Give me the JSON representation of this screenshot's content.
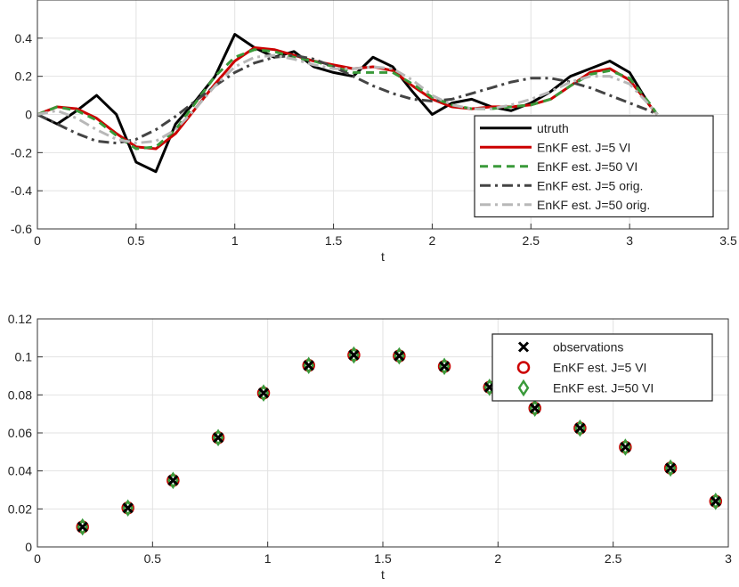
{
  "chart_data": [
    {
      "type": "line",
      "xlabel": "t",
      "x": [
        0,
        0.1,
        0.2,
        0.3,
        0.4,
        0.5,
        0.6,
        0.7,
        0.8,
        0.9,
        1.0,
        1.1,
        1.2,
        1.3,
        1.4,
        1.5,
        1.6,
        1.7,
        1.8,
        1.9,
        2.0,
        2.1,
        2.2,
        2.3,
        2.4,
        2.5,
        2.6,
        2.7,
        2.8,
        2.9,
        3.0,
        3.1,
        3.14
      ],
      "series": [
        {
          "name": "utruth",
          "color": "#000000",
          "style": "solid",
          "values": [
            0,
            -0.05,
            0.02,
            0.1,
            0.0,
            -0.25,
            -0.3,
            -0.05,
            0.07,
            0.2,
            0.42,
            0.35,
            0.3,
            0.33,
            0.25,
            0.22,
            0.2,
            0.3,
            0.25,
            0.12,
            0.0,
            0.06,
            0.08,
            0.04,
            0.02,
            0.06,
            0.12,
            0.2,
            0.24,
            0.28,
            0.22,
            0.05,
            0
          ]
        },
        {
          "name": "EnKF est. J=5 VI",
          "color": "#cc0000",
          "style": "solid",
          "values": [
            0,
            0.04,
            0.03,
            -0.02,
            -0.1,
            -0.17,
            -0.18,
            -0.1,
            0.03,
            0.16,
            0.28,
            0.35,
            0.34,
            0.31,
            0.28,
            0.26,
            0.24,
            0.25,
            0.23,
            0.15,
            0.08,
            0.04,
            0.03,
            0.04,
            0.04,
            0.05,
            0.08,
            0.15,
            0.22,
            0.24,
            0.18,
            0.05,
            0
          ]
        },
        {
          "name": "EnKF est. J=50 VI",
          "color": "#3a9a3a",
          "style": "dashed",
          "values": [
            0,
            0.04,
            0.02,
            -0.03,
            -0.11,
            -0.18,
            -0.17,
            -0.08,
            0.06,
            0.2,
            0.3,
            0.34,
            0.33,
            0.3,
            0.28,
            0.25,
            0.22,
            0.22,
            0.22,
            0.16,
            0.09,
            0.05,
            0.03,
            0.03,
            0.04,
            0.05,
            0.08,
            0.15,
            0.21,
            0.23,
            0.19,
            0.06,
            0
          ]
        },
        {
          "name": "EnKF est. J=5 orig.",
          "color": "#444444",
          "style": "dashdot",
          "values": [
            0,
            -0.05,
            -0.1,
            -0.14,
            -0.15,
            -0.13,
            -0.08,
            -0.01,
            0.07,
            0.15,
            0.22,
            0.27,
            0.3,
            0.31,
            0.29,
            0.25,
            0.2,
            0.15,
            0.11,
            0.08,
            0.07,
            0.08,
            0.11,
            0.14,
            0.17,
            0.19,
            0.19,
            0.17,
            0.14,
            0.1,
            0.06,
            0.02,
            0
          ]
        },
        {
          "name": "EnKF est. J=50 orig.",
          "color": "#b8b8b8",
          "style": "dashdot",
          "values": [
            0,
            0.02,
            -0.02,
            -0.08,
            -0.13,
            -0.15,
            -0.14,
            -0.08,
            0.03,
            0.15,
            0.25,
            0.3,
            0.31,
            0.29,
            0.26,
            0.24,
            0.24,
            0.25,
            0.24,
            0.18,
            0.1,
            0.05,
            0.03,
            0.03,
            0.05,
            0.08,
            0.12,
            0.17,
            0.2,
            0.2,
            0.16,
            0.05,
            0
          ]
        }
      ],
      "xlim": [
        0,
        3.5
      ],
      "xticks": [
        0,
        0.5,
        1,
        1.5,
        2,
        2.5,
        3,
        3.5
      ],
      "ylim": [
        -0.6,
        0.6
      ],
      "yticks": [
        -0.6,
        -0.4,
        -0.2,
        0,
        0.2,
        0.4
      ],
      "grid": true
    },
    {
      "type": "scatter",
      "xlabel": "t",
      "x": [
        0.196,
        0.393,
        0.589,
        0.785,
        0.982,
        1.178,
        1.374,
        1.571,
        1.767,
        1.963,
        2.16,
        2.356,
        2.553,
        2.749,
        2.945
      ],
      "series": [
        {
          "name": "observations",
          "color": "#000000",
          "marker": "x",
          "values": [
            0.0105,
            0.0205,
            0.035,
            0.0575,
            0.081,
            0.0955,
            0.101,
            0.1005,
            0.095,
            0.084,
            0.073,
            0.0625,
            0.0525,
            0.0415,
            0.024
          ]
        },
        {
          "name": "EnKF est. J=5 VI",
          "color": "#cc0000",
          "marker": "circle",
          "values": [
            0.0105,
            0.0205,
            0.035,
            0.0575,
            0.081,
            0.0955,
            0.101,
            0.1005,
            0.095,
            0.084,
            0.073,
            0.0625,
            0.0525,
            0.0415,
            0.024
          ]
        },
        {
          "name": "EnKF est. J=50 VI",
          "color": "#3a9a3a",
          "marker": "diamond",
          "values": [
            0.0105,
            0.0205,
            0.035,
            0.0575,
            0.081,
            0.0955,
            0.101,
            0.1005,
            0.095,
            0.084,
            0.073,
            0.0625,
            0.0525,
            0.0415,
            0.024
          ]
        }
      ],
      "xlim": [
        0,
        3
      ],
      "xticks": [
        0,
        0.5,
        1,
        1.5,
        2,
        2.5,
        3
      ],
      "ylim": [
        0,
        0.12
      ],
      "yticks": [
        0,
        0.02,
        0.04,
        0.06,
        0.08,
        0.1,
        0.12
      ],
      "grid": true
    }
  ]
}
